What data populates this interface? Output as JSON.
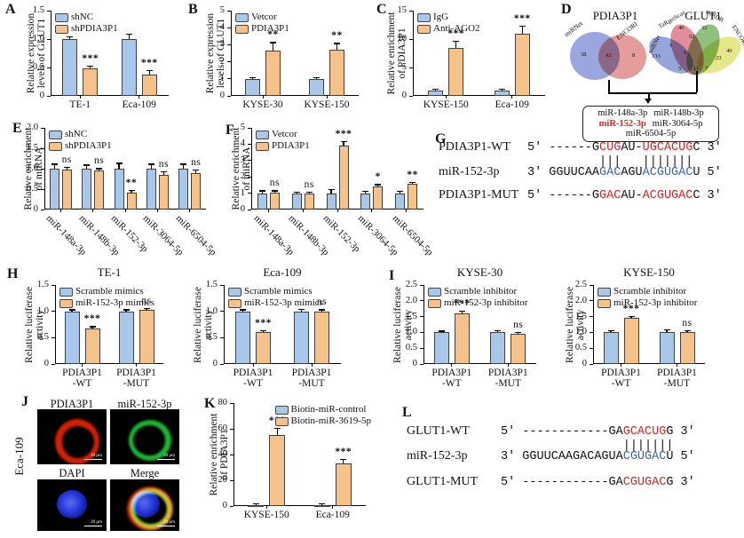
{
  "colors": {
    "bar_blue": "#a9c7e9",
    "bar_orange": "#f5c28b",
    "bar_border": "#3f3f3f",
    "red_text": "#e2231a",
    "blue_text": "#3b5fa8"
  },
  "panels": {
    "A": "A",
    "B": "B",
    "C": "C",
    "D": "D",
    "E": "E",
    "F": "F",
    "G": "G",
    "H": "H",
    "I": "I",
    "J": "J",
    "K": "K",
    "L": "L"
  },
  "chart_data": [
    {
      "id": "A",
      "type": "bar",
      "title": "",
      "ylabel": [
        "Relative expression",
        "levels of GLUT1"
      ],
      "ymax": 1.5,
      "ytick_vals": [
        0,
        0.5,
        1,
        1.5
      ],
      "ytick_labels": [
        "0",
        "0.5",
        "1.0",
        "1.5"
      ],
      "categories": [
        "TE-1",
        "Eca-109"
      ],
      "series": [
        {
          "name": "shNC",
          "values": [
            1.0,
            1.0
          ],
          "errors": [
            0.03,
            0.08
          ]
        },
        {
          "name": "shPDIA3P1",
          "values": [
            0.48,
            0.38
          ],
          "errors": [
            0.04,
            0.06
          ]
        }
      ],
      "sig": [
        "***",
        "***"
      ],
      "legend_pos": "top-left"
    },
    {
      "id": "B",
      "type": "bar",
      "title": "",
      "ylabel": [
        "Relative expression",
        "levels of GLUT1"
      ],
      "ymax": 5,
      "ytick_vals": [
        0,
        1,
        2,
        3,
        4,
        5
      ],
      "ytick_labels": [
        "0",
        "1",
        "2",
        "3",
        "4",
        "5"
      ],
      "categories": [
        "KYSE-30",
        "KYSE-150"
      ],
      "series": [
        {
          "name": "Vetcor",
          "values": [
            1.0,
            1.0
          ],
          "errors": [
            0.04,
            0.05
          ]
        },
        {
          "name": "PDIA3P1",
          "values": [
            2.65,
            2.7
          ],
          "errors": [
            0.45,
            0.35
          ]
        }
      ],
      "sig": [
        "**",
        "**"
      ],
      "legend_pos": "top-left"
    },
    {
      "id": "C",
      "type": "bar",
      "title": "",
      "ylabel": [
        "Relative enrichment",
        "of PDIA3P1"
      ],
      "ymax": 15,
      "ytick_vals": [
        0,
        5,
        10,
        15
      ],
      "ytick_labels": [
        "0",
        "5",
        "10",
        "15"
      ],
      "categories": [
        "KYSE-150",
        "Eca-109"
      ],
      "series": [
        {
          "name": "IgG",
          "values": [
            1.0,
            1.0
          ],
          "errors": [
            0.15,
            0.15
          ]
        },
        {
          "name": "Anti-AGO2",
          "values": [
            8.4,
            11.0
          ],
          "errors": [
            1.1,
            1.2
          ]
        }
      ],
      "sig": [
        "***",
        "***"
      ],
      "legend_pos": "top-left"
    },
    {
      "id": "E",
      "type": "bar",
      "title": "",
      "ylabel": [
        "Relative enrichment",
        "of miRNA"
      ],
      "ymax": 2,
      "ytick_vals": [
        0,
        0.5,
        1,
        1.5,
        2
      ],
      "ytick_labels": [
        "0",
        "0.5",
        "1.0",
        "1.5",
        "2.0"
      ],
      "categories": [
        "miR-148a-3p",
        "miR-148b-3p",
        "miR-152-3p",
        "miR-3064-5p",
        "miR-6504-5p"
      ],
      "series": [
        {
          "name": "shNC",
          "values": [
            1.0,
            1.0,
            1.0,
            1.0,
            1.0
          ],
          "errors": [
            0.1,
            0.08,
            0.12,
            0.1,
            0.1
          ]
        },
        {
          "name": "shPDIA3P1",
          "values": [
            0.97,
            0.95,
            0.42,
            0.85,
            0.9
          ],
          "errors": [
            0.05,
            0.04,
            0.03,
            0.06,
            0.05
          ]
        }
      ],
      "sig": [
        "ns",
        "ns",
        "**",
        "ns",
        "ns"
      ],
      "rotate_xlabels": true,
      "legend_pos": "top-left"
    },
    {
      "id": "F",
      "type": "bar",
      "title": "",
      "ylabel": [
        "Relative enrichment",
        "of miRNA"
      ],
      "ymax": 5,
      "ytick_vals": [
        0,
        1,
        2,
        3,
        4,
        5
      ],
      "ytick_labels": [
        "0",
        "1",
        "2",
        "3",
        "4",
        "5"
      ],
      "categories": [
        "miR-148a-3p",
        "miR-148b-3p",
        "miR-152-3p",
        "miR-3064-5p",
        "miR-6504-5p"
      ],
      "series": [
        {
          "name": "Vetcor",
          "values": [
            1.0,
            1.0,
            1.0,
            1.0,
            1.0
          ],
          "errors": [
            0.12,
            0.05,
            0.2,
            0.08,
            0.1
          ]
        },
        {
          "name": "PDIA3P1",
          "values": [
            1.05,
            1.0,
            3.9,
            1.4,
            1.55
          ],
          "errors": [
            0.07,
            0.05,
            0.25,
            0.1,
            0.07
          ]
        }
      ],
      "sig": [
        "ns",
        "ns",
        "***",
        "*",
        "**"
      ],
      "rotate_xlabels": true,
      "legend_pos": "top-left"
    },
    {
      "id": "H1",
      "type": "bar",
      "title": "TE-1",
      "ylabel": [
        "Relative luciferase",
        "activity"
      ],
      "ymax": 1.5,
      "ytick_vals": [
        0,
        0.5,
        1,
        1.5
      ],
      "ytick_labels": [
        "0",
        "0.5",
        "1.0",
        "1.5"
      ],
      "categories": [
        "PDIA3P1\n-WT",
        "PDIA3P1\n-MUT"
      ],
      "series": [
        {
          "name": "Scramble mimics",
          "values": [
            1.0,
            1.0
          ],
          "errors": [
            0.02,
            0.02
          ]
        },
        {
          "name": "miR-152-3p mimics",
          "values": [
            0.68,
            1.02
          ],
          "errors": [
            0.02,
            0.03
          ]
        }
      ],
      "sig": [
        "***",
        "ns"
      ],
      "legend_pos": "top-left"
    },
    {
      "id": "H2",
      "type": "bar",
      "title": "Eca-109",
      "ylabel": [
        "Relative luciferase",
        "activity"
      ],
      "ymax": 1.5,
      "ytick_vals": [
        0,
        0.5,
        1,
        1.5
      ],
      "ytick_labels": [
        "0",
        "0.5",
        "1.0",
        "1.5"
      ],
      "categories": [
        "PDIA3P1\n-WT",
        "PDIA3P1\n-MUT"
      ],
      "series": [
        {
          "name": "Scramble mimics",
          "values": [
            1.0,
            1.0
          ],
          "errors": [
            0.02,
            0.03
          ]
        },
        {
          "name": "miR-152-3p mimics",
          "values": [
            0.6,
            0.99
          ],
          "errors": [
            0.02,
            0.03
          ]
        }
      ],
      "sig": [
        "***",
        "ns"
      ],
      "legend_pos": "top-left"
    },
    {
      "id": "I1",
      "type": "bar",
      "title": "KYSE-30",
      "ylabel": [
        "Relative luciferase",
        "activity"
      ],
      "ymax": 2.5,
      "ytick_vals": [
        0,
        0.5,
        1,
        1.5,
        2,
        2.5
      ],
      "ytick_labels": [
        "0",
        "0.5",
        "1.0",
        "1.5",
        "2.0",
        "2.5"
      ],
      "categories": [
        "PDIA3P1\n-WT",
        "PDIA3P1\n-MUT"
      ],
      "series": [
        {
          "name": "Scramble inhibitor",
          "values": [
            1.0,
            1.0
          ],
          "errors": [
            0.03,
            0.05
          ]
        },
        {
          "name": "miR-152-3p inhibitor",
          "values": [
            1.6,
            0.95
          ],
          "errors": [
            0.07,
            0.04
          ]
        }
      ],
      "sig": [
        "***",
        "ns"
      ],
      "legend_pos": "top-left"
    },
    {
      "id": "I2",
      "type": "bar",
      "title": "KYSE-150",
      "ylabel": [
        "Relative luciferase",
        "activity"
      ],
      "ymax": 2.5,
      "ytick_vals": [
        0,
        0.5,
        1,
        1.5,
        2,
        2.5
      ],
      "ytick_labels": [
        "0",
        "0.5",
        "1.0",
        "1.5",
        "2.0",
        "2.5"
      ],
      "categories": [
        "PDIA3P1\n-WT",
        "PDIA3P1\n-MUT"
      ],
      "series": [
        {
          "name": "Scramble inhibitor",
          "values": [
            1.0,
            1.0
          ],
          "errors": [
            0.04,
            0.08
          ]
        },
        {
          "name": "miR-152-3p inhibitor",
          "values": [
            1.45,
            1.0
          ],
          "errors": [
            0.05,
            0.04
          ]
        }
      ],
      "sig": [
        "***",
        "ns"
      ],
      "legend_pos": "top-left"
    },
    {
      "id": "K",
      "type": "bar",
      "title": "",
      "ylabel": [
        "Relative enrichment",
        "of PDIA3P1"
      ],
      "ymax": 80,
      "ytick_vals": [
        0,
        20,
        40,
        60,
        80
      ],
      "ytick_labels": [
        "0",
        "20",
        "40",
        "60",
        "80"
      ],
      "categories": [
        "KYSE-150",
        "Eca-109"
      ],
      "series": [
        {
          "name": "Biotin-miR-control",
          "values": [
            1.0,
            1.0
          ],
          "errors": [
            0.4,
            0.4
          ]
        },
        {
          "name": "Biotin-miR-3619-5p",
          "values": [
            55,
            33
          ],
          "errors": [
            5,
            3
          ]
        }
      ],
      "sig": [
        "***",
        "***"
      ],
      "legend_pos": "top-right"
    }
  ],
  "venn": {
    "left": {
      "title": "PDIA3P1",
      "sets": [
        "miRNet",
        "ENCORI"
      ],
      "counts": [
        "38",
        "42",
        "8"
      ]
    },
    "right": {
      "title": "GLUT1",
      "sets": [
        "miRNet",
        "TaRgetScan",
        "miRDB",
        "ENCORI"
      ],
      "counts": [
        "133",
        "40",
        "52",
        "32",
        "49",
        "9",
        "6",
        "11",
        "5",
        "7",
        "23"
      ]
    },
    "box_mirnas": [
      "miR-148a-3p",
      "miR-148b-3p",
      "miR-152-3p",
      "miR-3064-5p",
      "miR-6504-5p"
    ]
  },
  "alignments": {
    "G": {
      "rows": [
        {
          "label": "PDIA3P1-WT",
          "segs": [
            {
              "t": "5' ------G",
              "c": "k"
            },
            {
              "t": "CUG",
              "c": "r"
            },
            {
              "t": "AU-",
              "c": "k"
            },
            {
              "t": "UGCACUG",
              "c": "r"
            },
            {
              "t": "C 3'",
              "c": "k"
            }
          ]
        },
        {
          "pipes": true,
          "label": "",
          "segs": [
            {
              "t": "          |||   |||||||",
              "c": "k"
            }
          ]
        },
        {
          "label": "miR-152-3p",
          "segs": [
            {
              "t": "3' GGUUCAA",
              "c": "k"
            },
            {
              "t": "GAC",
              "c": "b"
            },
            {
              "t": "AGU",
              "c": "k"
            },
            {
              "t": "ACGUGAC",
              "c": "b"
            },
            {
              "t": "U 5'",
              "c": "k"
            }
          ]
        },
        {
          "label": "PDIA3P1-MUT",
          "gap": 9,
          "segs": [
            {
              "t": "5' ------G",
              "c": "k"
            },
            {
              "t": "GAC",
              "c": "r"
            },
            {
              "t": "AU-",
              "c": "k"
            },
            {
              "t": "ACGUGAC",
              "c": "r"
            },
            {
              "t": "C 3'",
              "c": "k"
            }
          ]
        }
      ]
    },
    "L": {
      "rows": [
        {
          "label": "GLUT1-WT",
          "segs": [
            {
              "t": "5' ------------GA",
              "c": "k"
            },
            {
              "t": "GCACUG",
              "c": "r"
            },
            {
              "t": "G 3'",
              "c": "k"
            }
          ]
        },
        {
          "pipes": true,
          "label": "",
          "segs": [
            {
              "t": "                 |||||||",
              "c": "k"
            }
          ]
        },
        {
          "label": "miR-152-3p",
          "segs": [
            {
              "t": "3' GGUUCAAGACAGUA",
              "c": "k"
            },
            {
              "t": "CGUGAC",
              "c": "b"
            },
            {
              "t": "U 5'",
              "c": "k"
            }
          ]
        },
        {
          "label": "GLUT1-MUT",
          "gap": 12,
          "segs": [
            {
              "t": "5' ------------GA",
              "c": "k"
            },
            {
              "t": "CGUGAC",
              "c": "r"
            },
            {
              "t": "G 3'",
              "c": "k"
            }
          ]
        }
      ]
    }
  },
  "microscopy": {
    "cell_line": "Eca-109",
    "scale_label": "20 μm",
    "images": [
      {
        "title": "PDIA3P1"
      },
      {
        "title": "miR-152-3p"
      },
      {
        "title": "DAPI"
      },
      {
        "title": "Merge"
      }
    ]
  }
}
